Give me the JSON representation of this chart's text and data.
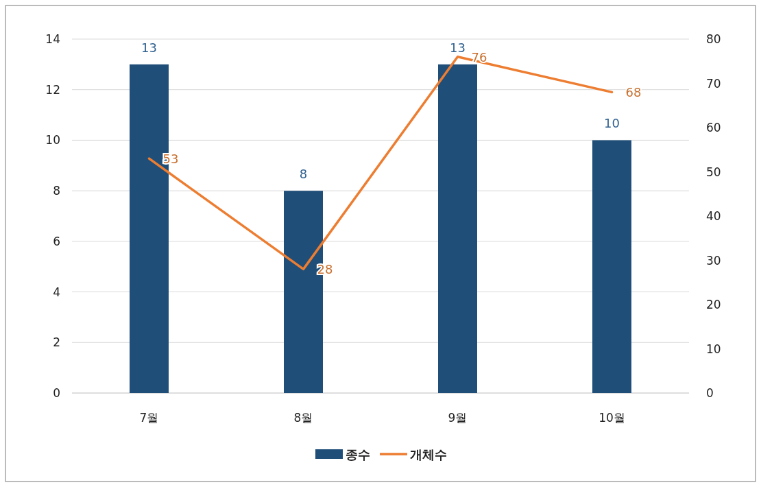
{
  "chart_data": {
    "type": "bar",
    "categories": [
      "7월",
      "8월",
      "9월",
      "10월"
    ],
    "series": [
      {
        "name": "종수",
        "color": "#1f4e79",
        "values": [
          13,
          8,
          13,
          10
        ]
      },
      {
        "name": "개체수",
        "type": "line",
        "axis": "y2",
        "color": "#ed7d31",
        "values": [
          53,
          28,
          76,
          68
        ]
      }
    ],
    "ylim": [
      0,
      14
    ],
    "yticks": [
      0,
      2,
      4,
      6,
      8,
      10,
      12,
      14
    ],
    "y2lim": [
      0,
      80
    ],
    "y2ticks": [
      0,
      10,
      20,
      30,
      40,
      50,
      60,
      70,
      80
    ],
    "grid": "y",
    "legend": "bottom",
    "data_labels": true
  }
}
